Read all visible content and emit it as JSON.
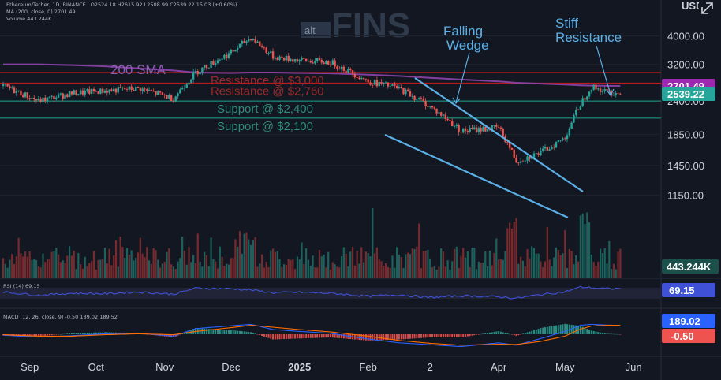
{
  "app": {
    "currency_label": "USDT",
    "expand_icon": "expand-icon"
  },
  "header": {
    "symbol_line": "Ethereum/Tether, 1D, BINANCE",
    "ohlc_line": "O2524.18  H2615.92  L2508.99  C2539.22  15.03 (+0.60%)",
    "ma_line": "MA (200, close, 0)  2701.49",
    "volume_line": "Volume  443.244K"
  },
  "logo": {
    "small": "alt",
    "large": "FINS"
  },
  "chart_data": [
    {
      "type": "line",
      "pane": "price",
      "symbol": "Ethereum/Tether, 1D, BINANCE",
      "x": [
        "2024-08-20",
        "2024-09-05",
        "2024-09-20",
        "2024-10-05",
        "2024-10-20",
        "2024-11-05",
        "2024-11-15",
        "2024-12-01",
        "2024-12-10",
        "2024-12-20",
        "2025-01-01",
        "2025-01-15",
        "2025-02-01",
        "2025-02-15",
        "2025-03-01",
        "2025-03-15",
        "2025-04-01",
        "2025-04-09",
        "2025-04-20",
        "2025-05-01",
        "2025-05-08",
        "2025-05-13",
        "2025-05-20",
        "2025-05-26"
      ],
      "series": [
        {
          "name": "",
          "values": [
            2700,
            2400,
            2550,
            2600,
            2650,
            2450,
            3000,
            3500,
            3950,
            3400,
            3300,
            3250,
            2800,
            2650,
            2300,
            1900,
            1950,
            1500,
            1600,
            1800,
            2350,
            2680,
            2580,
            2539
          ]
        },
        {
          "name": "200 SMA",
          "values": [
            3200,
            3200,
            3180,
            3150,
            3100,
            3050,
            3000,
            2990,
            3000,
            3000,
            2990,
            2980,
            2950,
            2920,
            2880,
            2840,
            2800,
            2770,
            2750,
            2730,
            2715,
            2708,
            2703,
            2701
          ]
        }
      ],
      "yticks": [
        "4000.00",
        "3200.00",
        "2400.00",
        "1850.00",
        "1450.00",
        "1150.00"
      ],
      "xticks": [
        "Sep",
        "Oct",
        "Nov",
        "Dec",
        "2025",
        "Feb",
        "2",
        "Apr",
        "May",
        "Jun"
      ],
      "log_scale": true,
      "ylim": [
        1000,
        4400
      ],
      "horizontal_lines": [
        {
          "label": "Resistance @ $3,000",
          "value": 3000
        },
        {
          "label": "Resistance @ $2,760",
          "value": 2760
        },
        {
          "label": "Support @ $2,400",
          "value": 2400
        },
        {
          "label": "Support @ $2,100",
          "value": 2100
        }
      ],
      "annotations": [
        {
          "text": "200 SMA"
        },
        {
          "text": "Falling Wedge"
        },
        {
          "text": "Stiff Resistance"
        }
      ],
      "last_price_badges": [
        {
          "value": "2701.49",
          "color": "#9c27b0"
        },
        {
          "value": "2539.22",
          "color": "#26a69a"
        }
      ],
      "volume_badge": "443.244K"
    },
    {
      "type": "line",
      "pane": "rsi",
      "legend": "RSI (14)  69.15",
      "series": [
        {
          "name": "RSI (14)",
          "values": [
            55,
            42,
            50,
            48,
            55,
            46,
            70,
            68,
            63,
            52,
            54,
            50,
            38,
            44,
            33,
            40,
            36,
            30,
            45,
            55,
            75,
            72,
            68,
            69
          ]
        }
      ],
      "ylim": [
        0,
        100
      ],
      "badge": "69.15"
    },
    {
      "type": "bar",
      "pane": "macd",
      "legend": "MACD (12, 26, close, 9)  -0.50  189.02  189.52",
      "series": [
        {
          "name": "MACD",
          "values": [
            -20,
            -60,
            -30,
            10,
            20,
            -40,
            120,
            180,
            210,
            100,
            60,
            20,
            -100,
            -180,
            -220,
            -260,
            -180,
            -230,
            -90,
            60,
            190,
            210,
            195,
            189
          ]
        },
        {
          "name": "Signal",
          "values": [
            -10,
            -40,
            -40,
            -10,
            10,
            -10,
            60,
            140,
            190,
            150,
            100,
            50,
            -40,
            -130,
            -190,
            -230,
            -210,
            -215,
            -150,
            -40,
            110,
            175,
            190,
            190
          ]
        }
      ],
      "badges": [
        "189.02",
        "-0.50"
      ]
    }
  ],
  "colors": {
    "up": "#26a69a",
    "down": "#ef5350",
    "sma": "#8e44ad",
    "resistance": "#b71c1c",
    "support": "#1b7c6f",
    "wedge": "#5ab0e6",
    "rsi": "#3f51d6",
    "macd": "#2962ff",
    "signal": "#ff6d00"
  }
}
